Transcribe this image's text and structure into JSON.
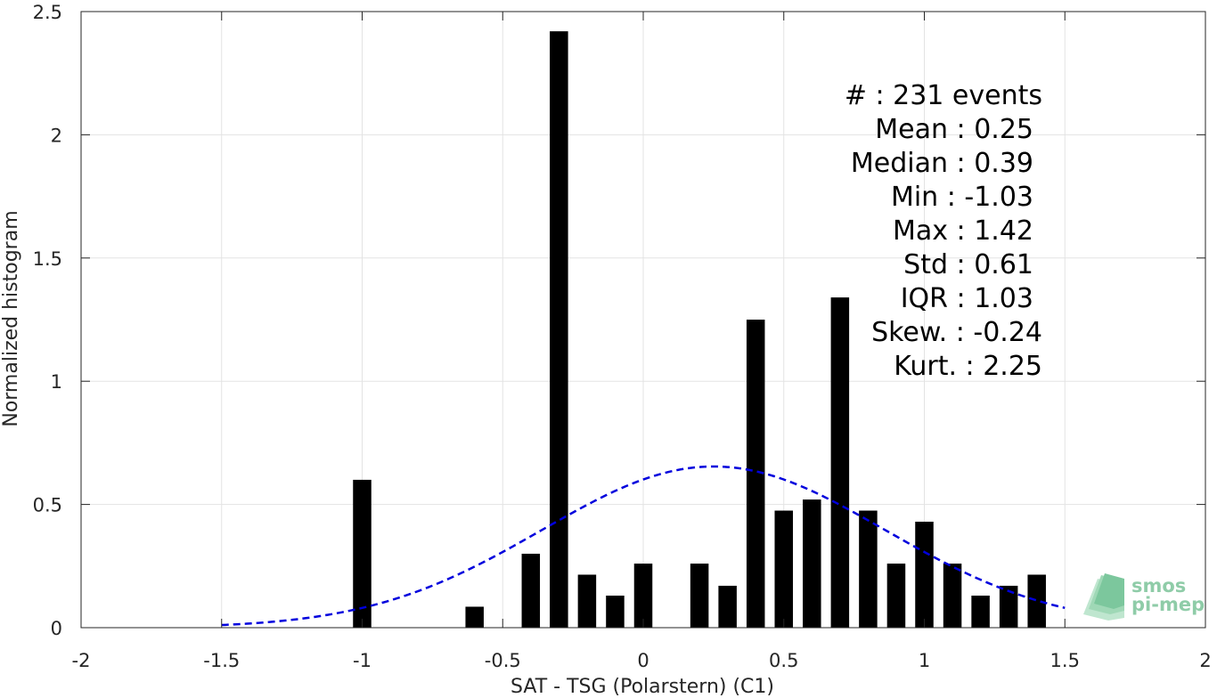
{
  "chart_data": {
    "type": "bar",
    "xlabel": "SAT - TSG (Polarstern) (C1)",
    "ylabel": "Normalized histogram",
    "xlim": [
      -2,
      2
    ],
    "ylim": [
      0,
      2.5
    ],
    "xticks": [
      -2,
      -1.5,
      -1,
      -0.5,
      0,
      0.5,
      1,
      1.5,
      2
    ],
    "xtick_labels": [
      "-2",
      "-1.5",
      "-1",
      "-0.5",
      "0",
      "0.5",
      "1",
      "1.5",
      "2"
    ],
    "yticks": [
      0,
      0.5,
      1,
      1.5,
      2,
      2.5
    ],
    "ytick_labels": [
      "0",
      "0.5",
      "1",
      "1.5",
      "2",
      "2.5"
    ],
    "grid": true,
    "bar_width": 0.065,
    "bars": [
      {
        "x": -1.0,
        "value": 0.6
      },
      {
        "x": -0.6,
        "value": 0.085
      },
      {
        "x": -0.4,
        "value": 0.3
      },
      {
        "x": -0.3,
        "value": 2.42
      },
      {
        "x": -0.2,
        "value": 0.215
      },
      {
        "x": -0.1,
        "value": 0.13
      },
      {
        "x": 0.0,
        "value": 0.26
      },
      {
        "x": 0.2,
        "value": 0.26
      },
      {
        "x": 0.3,
        "value": 0.17
      },
      {
        "x": 0.4,
        "value": 1.25
      },
      {
        "x": 0.5,
        "value": 0.475
      },
      {
        "x": 0.6,
        "value": 0.52
      },
      {
        "x": 0.7,
        "value": 1.34
      },
      {
        "x": 0.8,
        "value": 0.475
      },
      {
        "x": 0.9,
        "value": 0.26
      },
      {
        "x": 1.0,
        "value": 0.43
      },
      {
        "x": 1.1,
        "value": 0.26
      },
      {
        "x": 1.2,
        "value": 0.13
      },
      {
        "x": 1.3,
        "value": 0.17
      },
      {
        "x": 1.4,
        "value": 0.215
      }
    ],
    "fit_curve": {
      "style": "dashed",
      "color": "#0000dd",
      "mean": 0.25,
      "std": 0.61,
      "x_range": [
        -1.5,
        1.5
      ]
    },
    "bar_color": "#000000",
    "stats": [
      {
        "label": "#  ",
        "value": ": 231 events"
      },
      {
        "label": "Mean",
        "value": ": 0.25"
      },
      {
        "label": "Median",
        "value": ": 0.39"
      },
      {
        "label": "Min",
        "value": ": -1.03"
      },
      {
        "label": "Max",
        "value": ": 1.42"
      },
      {
        "label": "Std",
        "value": ": 0.61"
      },
      {
        "label": "IQR",
        "value": ": 1.03"
      },
      {
        "label": "Skew.",
        "value": ": -0.24"
      },
      {
        "label": "Kurt.",
        "value": ": 2.25"
      }
    ]
  },
  "logo": {
    "line1": "smos",
    "line2": "pi-mep",
    "color": "#8fcca8"
  }
}
